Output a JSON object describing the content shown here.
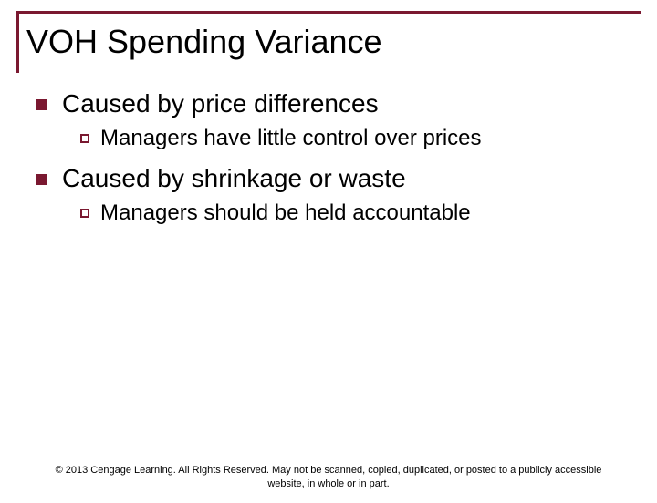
{
  "colors": {
    "accent": "#7a1830",
    "text": "#000000",
    "background": "#ffffff",
    "title_underline": "#555555"
  },
  "typography": {
    "title_fontsize": 36,
    "l1_fontsize": 28,
    "l2_fontsize": 24,
    "footer_fontsize": 11,
    "font_family": "Arial"
  },
  "title": "VOH Spending Variance",
  "bullets": [
    {
      "text": "Caused by price differences",
      "children": [
        {
          "text": "Managers have little control over prices"
        }
      ]
    },
    {
      "text": "Caused by shrinkage or waste",
      "children": [
        {
          "text": "Managers should be held accountable"
        }
      ]
    }
  ],
  "footer": "© 2013 Cengage Learning. All Rights Reserved. May not be scanned, copied, duplicated, or posted to a publicly accessible website, in whole or in part."
}
